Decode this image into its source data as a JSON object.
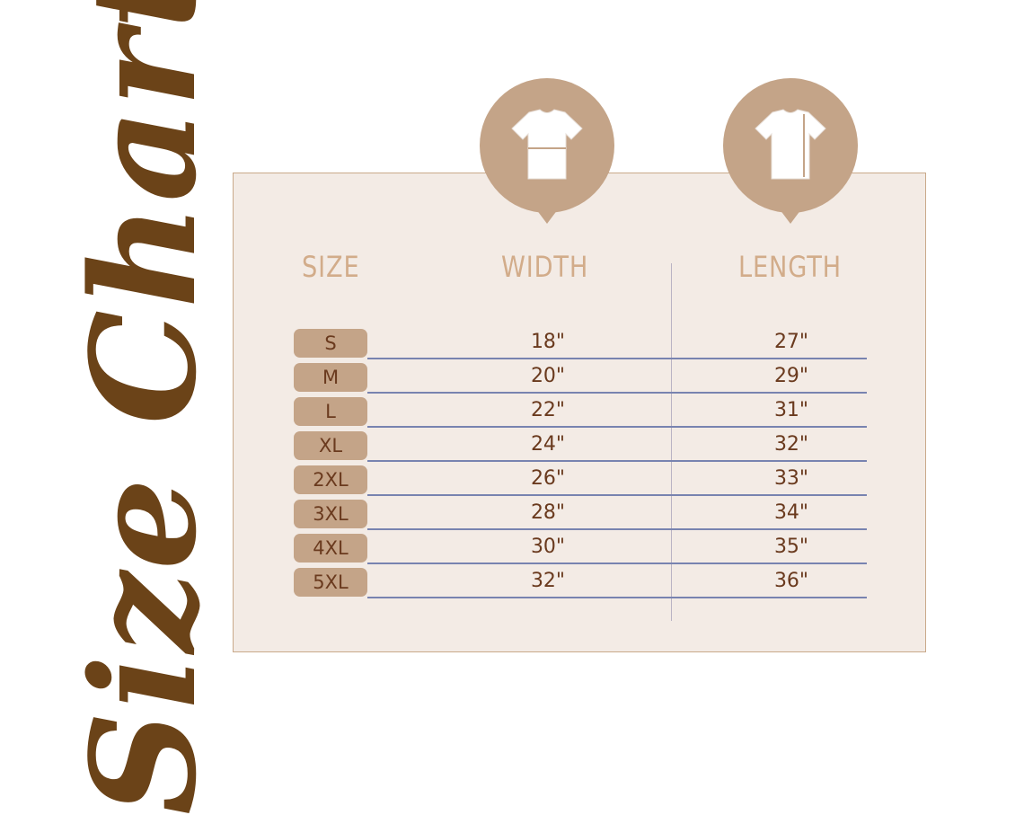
{
  "title": "Size Chart",
  "headers": {
    "size": "SIZE",
    "width": "WIDTH",
    "length": "LENGTH"
  },
  "icons": {
    "width": "tshirt-width-icon",
    "length": "tshirt-length-icon"
  },
  "colors": {
    "title": "#6b4318",
    "accent": "#c4a488",
    "panel": "#f3ebe5",
    "header": "#d2ac8a",
    "text": "#6a3a1e",
    "rule": "#7883b0"
  },
  "rows": [
    {
      "size": "S",
      "width": "18\"",
      "length": "27\""
    },
    {
      "size": "M",
      "width": "20\"",
      "length": "29\""
    },
    {
      "size": "L",
      "width": "22\"",
      "length": "31\""
    },
    {
      "size": "XL",
      "width": "24\"",
      "length": "32\""
    },
    {
      "size": "2XL",
      "width": "26\"",
      "length": "33\""
    },
    {
      "size": "3XL",
      "width": "28\"",
      "length": "34\""
    },
    {
      "size": "4XL",
      "width": "30\"",
      "length": "35\""
    },
    {
      "size": "5XL",
      "width": "32\"",
      "length": "36\""
    }
  ]
}
